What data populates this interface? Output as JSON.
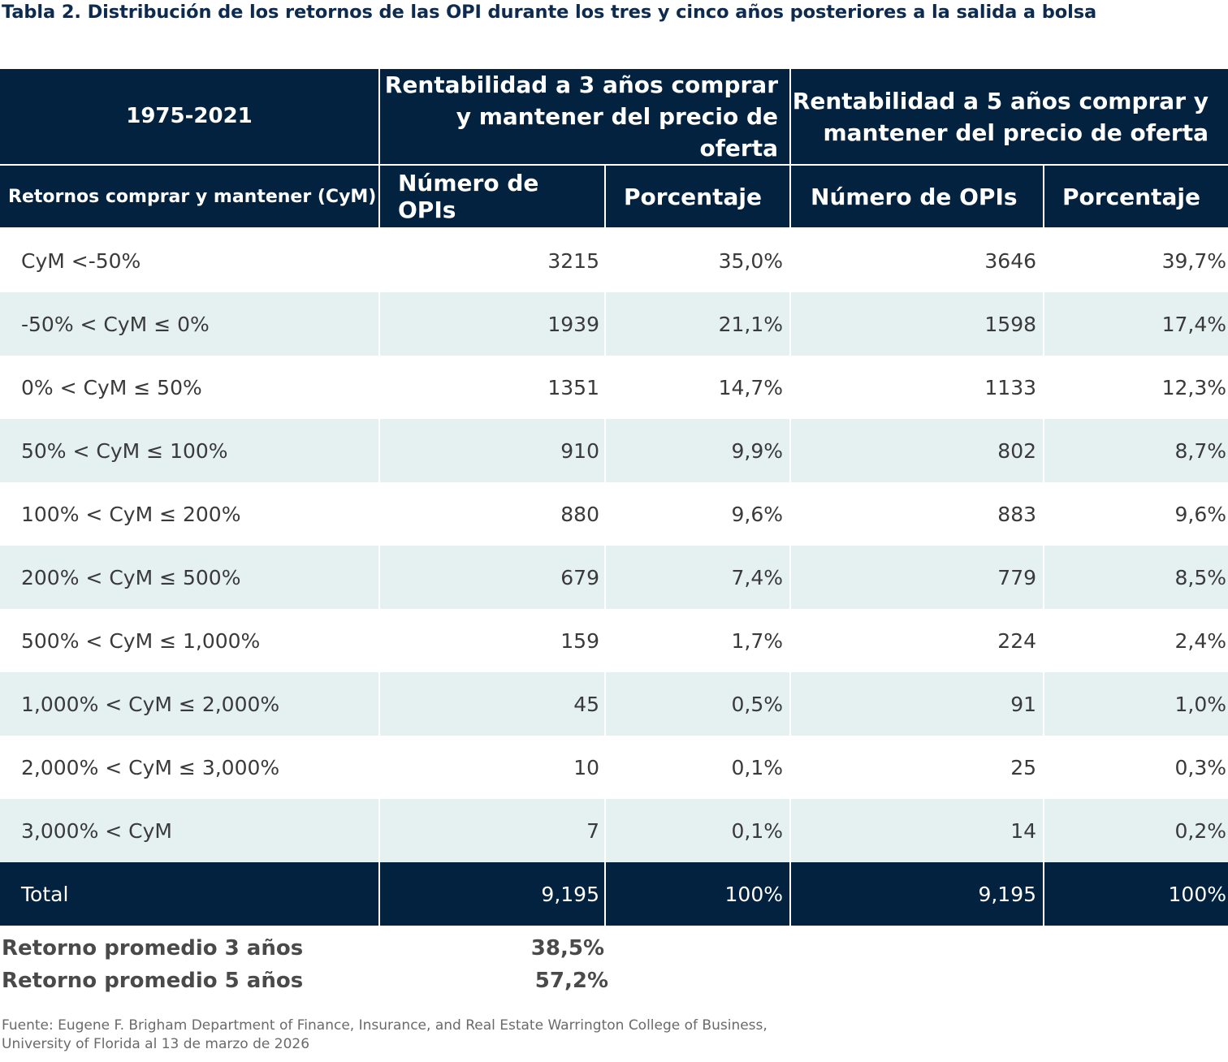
{
  "title": "Tabla 2. Distribución de los retornos de las OPI durante los tres y cinco años posteriores a la salida a bolsa",
  "header": {
    "period": "1975-2021",
    "group3_line1": "Rentabilidad a 3 años comprar",
    "group3_line2": "y mantener del precio de oferta",
    "group5_line1": "Rentabilidad a 5 años comprar y",
    "group5_line2": "mantener del precio de oferta",
    "row_label": "Retornos comprar y mantener (CyM)",
    "count3": "Número de OPIs",
    "pct3": "Porcentaje",
    "count5": "Número de OPIs",
    "pct5": "Porcentaje"
  },
  "rows": [
    {
      "label": "CyM <-50%",
      "n3": "3215",
      "p3": "35,0%",
      "n5": "3646",
      "p5": "39,7%"
    },
    {
      "label": "-50% < CyM ≤ 0%",
      "n3": "1939",
      "p3": "21,1%",
      "n5": "1598",
      "p5": "17,4%"
    },
    {
      "label": "0% < CyM ≤ 50%",
      "n3": "1351",
      "p3": "14,7%",
      "n5": "1133",
      "p5": "12,3%"
    },
    {
      "label": "50% < CyM ≤ 100%",
      "n3": "910",
      "p3": "9,9%",
      "n5": "802",
      "p5": "8,7%"
    },
    {
      "label": "100% < CyM ≤ 200%",
      "n3": "880",
      "p3": "9,6%",
      "n5": "883",
      "p5": "9,6%"
    },
    {
      "label": "200% < CyM ≤ 500%",
      "n3": "679",
      "p3": "7,4%",
      "n5": "779",
      "p5": "8,5%"
    },
    {
      "label": "500% < CyM ≤ 1,000%",
      "n3": "159",
      "p3": "1,7%",
      "n5": "224",
      "p5": "2,4%"
    },
    {
      "label": "1,000% < CyM ≤ 2,000%",
      "n3": "45",
      "p3": "0,5%",
      "n5": "91",
      "p5": "1,0%"
    },
    {
      "label": "2,000% < CyM ≤ 3,000%",
      "n3": "10",
      "p3": "0,1%",
      "n5": "25",
      "p5": "0,3%"
    },
    {
      "label": "3,000% < CyM",
      "n3": "7",
      "p3": "0,1%",
      "n5": "14",
      "p5": "0,2%"
    }
  ],
  "total": {
    "label": "Total",
    "n3": "9,195",
    "p3": "100%",
    "n5": "9,195",
    "p5": "100%"
  },
  "averages": [
    {
      "label": "Retorno promedio 3 años",
      "value": "38,5%"
    },
    {
      "label": "Retorno promedio 5 años",
      "value": "57,2%"
    }
  ],
  "source_line1": "Fuente: Eugene F. Brigham Department of Finance, Insurance, and Real Estate Warrington College of Business,",
  "source_line2": "University of Florida al 13 de marzo de 2026",
  "colors": {
    "header_bg": "#03223f",
    "alt_row_bg": "#e5f0f0",
    "title_color": "#0d2a4f"
  }
}
